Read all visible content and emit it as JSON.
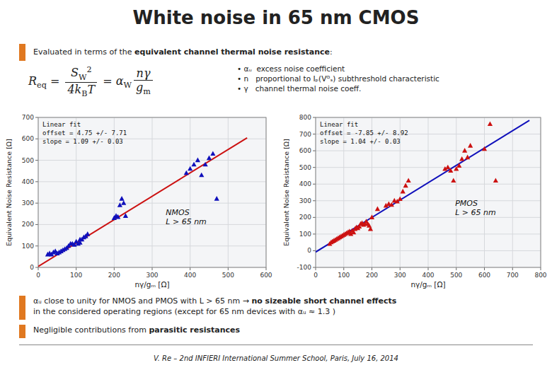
{
  "title": "White noise in 65 nm CMOS",
  "background_color": "#ffffff",
  "accent_color": "#E07820",
  "intro": [
    {
      "text": "Evaluated in terms of the "
    },
    {
      "text": "equivalent channel thermal noise resistance",
      "bold": true
    },
    {
      "text": ":"
    }
  ],
  "formula": [
    {
      "t": "R"
    },
    {
      "sub": "eq"
    },
    {
      "t": " = "
    },
    {
      "frac": [
        [
          {
            "t": "S"
          },
          {
            "sub": "W"
          },
          {
            "sup": "2"
          }
        ],
        [
          {
            "t": "4k"
          },
          {
            "sub": "B"
          },
          {
            "t": "T"
          }
        ]
      ]
    },
    {
      "t": " = α"
    },
    {
      "sub": "W"
    },
    {
      "frac": [
        [
          {
            "t": "nγ"
          }
        ],
        [
          {
            "t": "g"
          },
          {
            "sub": "m"
          }
        ]
      ]
    }
  ],
  "bullets": [
    "• αᵤ  excess noise coefficient",
    "• n   proportional to Iₚ(Vᴳₛ) subthreshold characteristic",
    "• γ   channel thermal noise coeff."
  ],
  "notes": [
    [
      [
        {
          "text": "αᵤ close to unity for NMOS and PMOS with L > 65 nm → "
        },
        {
          "text": "no sizeable short channel effects",
          "bold": true
        }
      ],
      [
        {
          "text": "in the considered operating regions (except for 65 nm devices with αᵤ ≈ 1.3 )"
        }
      ]
    ],
    [
      [
        {
          "text": "Negligible contributions from "
        },
        {
          "text": "parasitic resistances",
          "bold": true
        }
      ]
    ]
  ],
  "footer": "V. Re – 2nd INFIERI International Summer School, Paris, July 16, 2014",
  "chart_data": [
    {
      "type": "scatter",
      "xlabel": "nγ/gₘ [Ω]",
      "ylabel": "Equivalent Noise Resistance [Ω]",
      "xlim": [
        0,
        600
      ],
      "ylim": [
        0,
        700
      ],
      "xticks": [
        0,
        100,
        200,
        300,
        400,
        500,
        600
      ],
      "yticks": [
        0,
        100,
        200,
        300,
        400,
        500,
        600,
        700
      ],
      "grid": true,
      "series": [
        {
          "type": "scatter",
          "marker": "triangle",
          "color": "#1010bb",
          "x": [
            25,
            30,
            35,
            40,
            45,
            50,
            55,
            60,
            65,
            70,
            75,
            80,
            85,
            90,
            95,
            100,
            105,
            110,
            110,
            115,
            120,
            125,
            130,
            200,
            205,
            210,
            215,
            220,
            225,
            230,
            390,
            400,
            410,
            420,
            430,
            440,
            450,
            460,
            470
          ],
          "values": [
            60,
            65,
            60,
            70,
            75,
            65,
            70,
            75,
            80,
            85,
            90,
            100,
            110,
            110,
            105,
            120,
            110,
            115,
            130,
            130,
            140,
            145,
            155,
            230,
            240,
            235,
            290,
            320,
            300,
            240,
            440,
            460,
            480,
            500,
            430,
            480,
            510,
            530,
            320
          ]
        },
        {
          "type": "line",
          "line_style": "solid",
          "color": "#cc1111",
          "x": [
            0,
            550
          ],
          "values": [
            4.75,
            604.75
          ]
        }
      ],
      "annotations": [
        "NMOS\nL > 65 nm",
        "Linear fit\noffset = 4.75 +/- 7.71\nslope = 1.09 +/- 0.03"
      ]
    },
    {
      "type": "scatter",
      "xlabel": "nγ/gₘ [Ω]",
      "ylabel": "Equivalent Noise Resistance [Ω]",
      "xlim": [
        0,
        800
      ],
      "ylim": [
        -100,
        800
      ],
      "xticks": [
        0,
        100,
        200,
        300,
        400,
        500,
        600,
        700,
        800
      ],
      "yticks": [
        -100,
        0,
        100,
        200,
        300,
        400,
        500,
        600,
        700,
        800
      ],
      "grid": true,
      "series": [
        {
          "type": "scatter",
          "marker": "triangle",
          "color": "#cc1111",
          "x": [
            50,
            55,
            60,
            65,
            70,
            75,
            80,
            85,
            90,
            95,
            100,
            105,
            110,
            115,
            120,
            125,
            130,
            135,
            140,
            145,
            150,
            155,
            160,
            165,
            170,
            175,
            180,
            185,
            190,
            195,
            200,
            220,
            250,
            260,
            270,
            280,
            290,
            300,
            310,
            320,
            330,
            460,
            470,
            480,
            490,
            500,
            510,
            520,
            530,
            540,
            550,
            600,
            620,
            640
          ],
          "values": [
            40,
            50,
            55,
            60,
            65,
            70,
            75,
            80,
            85,
            90,
            95,
            100,
            105,
            110,
            115,
            100,
            120,
            110,
            130,
            140,
            135,
            145,
            160,
            165,
            155,
            160,
            175,
            160,
            150,
            130,
            200,
            250,
            270,
            280,
            275,
            300,
            295,
            310,
            355,
            390,
            420,
            490,
            500,
            480,
            420,
            490,
            510,
            550,
            600,
            560,
            630,
            610,
            760,
            420
          ]
        },
        {
          "type": "line",
          "line_style": "solid",
          "color": "#1010bb",
          "x": [
            0,
            760
          ],
          "values": [
            -7.85,
            782.55
          ]
        }
      ],
      "annotations": [
        "PMOS\nL > 65 nm",
        "Linear fit\noffset = -7.85 +/- 8.92\nslope = 1.04 +/- 0.03"
      ]
    }
  ]
}
